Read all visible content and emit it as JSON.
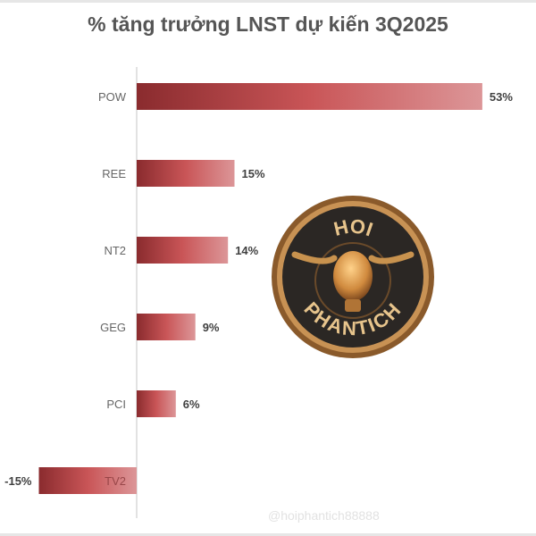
{
  "chart_data": {
    "type": "bar",
    "orientation": "horizontal",
    "title": "% tăng trưởng LNST dự kiến 3Q2025",
    "categories": [
      "POW",
      "REE",
      "NT2",
      "GEG",
      "PCI",
      "TV2"
    ],
    "values": [
      53,
      15,
      14,
      9,
      6,
      -15
    ],
    "data_labels": [
      "53%",
      "15%",
      "14%",
      "9%",
      "6%",
      "-15%"
    ],
    "unit": "%",
    "grid": false,
    "legend": "none",
    "colors": {
      "bar_dark": "#8a2b2e",
      "bar_mid": "#c95557",
      "bar_light": "#dc9698",
      "axis": "#d9d9d9",
      "category_text": "#666666",
      "label_text": "#404040"
    }
  },
  "logo": {
    "text_top": "HOI",
    "text_bottom": "PHANTICH"
  },
  "watermark": "@hoiphantich88888"
}
